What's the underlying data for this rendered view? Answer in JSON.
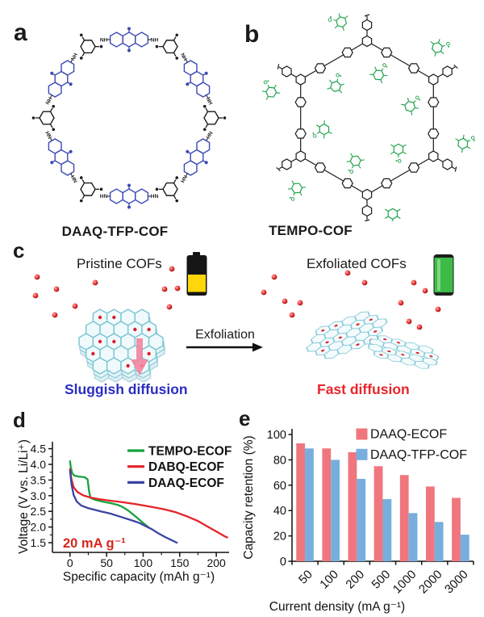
{
  "panels": {
    "a": {
      "label": "a",
      "caption": "DAAQ-TFP-COF",
      "nh_label": "NH",
      "accent_color": "#3b4ab3"
    },
    "b": {
      "label": "b",
      "caption": "TEMPO-COF",
      "radical_label": "O•",
      "accent_color": "#1ea24a"
    },
    "c": {
      "label": "c",
      "pristine_title": "Pristine COFs",
      "exfoliated_title": "Exfoliated COFs",
      "arrow_label": "Exfoliation",
      "sluggish_caption": "Sluggish diffusion",
      "fast_caption": "Fast diffusion",
      "sluggish_color": "#2b2ec1",
      "fast_color": "#e8262d",
      "battery_low_colors": {
        "body": "#161616",
        "charge": "#ffd60a"
      },
      "battery_full_color": "#3dbb46",
      "ion_color": "#d8232a"
    },
    "d": {
      "label": "d"
    },
    "e": {
      "label": "e"
    }
  },
  "chart_data": [
    {
      "panel": "d",
      "type": "line",
      "title": "",
      "xlabel": "Specific capacity (mAh g⁻¹)",
      "ylabel": "Voltage (V vs. Li/Li⁺)",
      "xlim": [
        -25,
        220
      ],
      "ylim": [
        1.3,
        4.7
      ],
      "xticks": [
        0,
        50,
        100,
        150,
        200
      ],
      "yticks": [
        1.5,
        2.0,
        2.5,
        3.0,
        3.5,
        4.0,
        4.5
      ],
      "grid": false,
      "legend_position": "top-right",
      "annotation": {
        "text": "20 mA g⁻¹",
        "color": "#d9251d"
      },
      "series": [
        {
          "name": "TEMPO-ECOF",
          "color": "#17a23c",
          "points": [
            [
              0,
              4.1
            ],
            [
              1,
              3.92
            ],
            [
              3,
              3.72
            ],
            [
              6,
              3.64
            ],
            [
              12,
              3.61
            ],
            [
              20,
              3.59
            ],
            [
              24,
              3.52
            ],
            [
              26,
              3.15
            ],
            [
              28,
              2.93
            ],
            [
              34,
              2.87
            ],
            [
              45,
              2.81
            ],
            [
              56,
              2.76
            ],
            [
              65,
              2.71
            ],
            [
              72,
              2.64
            ],
            [
              80,
              2.52
            ],
            [
              90,
              2.33
            ],
            [
              100,
              2.13
            ],
            [
              107,
              2.0
            ]
          ]
        },
        {
          "name": "DABQ-ECOF",
          "color": "#e42328",
          "points": [
            [
              0,
              3.85
            ],
            [
              2,
              3.52
            ],
            [
              5,
              3.27
            ],
            [
              10,
              3.12
            ],
            [
              18,
              3.01
            ],
            [
              28,
              2.94
            ],
            [
              40,
              2.89
            ],
            [
              55,
              2.84
            ],
            [
              70,
              2.8
            ],
            [
              90,
              2.73
            ],
            [
              110,
              2.65
            ],
            [
              130,
              2.56
            ],
            [
              145,
              2.47
            ],
            [
              160,
              2.34
            ],
            [
              175,
              2.19
            ],
            [
              190,
              1.99
            ],
            [
              203,
              1.82
            ],
            [
              211,
              1.71
            ],
            [
              215,
              1.67
            ]
          ]
        },
        {
          "name": "DAAQ-ECOF",
          "color": "#3b43a5",
          "points": [
            [
              0,
              3.8
            ],
            [
              2,
              3.37
            ],
            [
              5,
              3.02
            ],
            [
              9,
              2.82
            ],
            [
              15,
              2.69
            ],
            [
              25,
              2.6
            ],
            [
              40,
              2.51
            ],
            [
              55,
              2.43
            ],
            [
              70,
              2.32
            ],
            [
              85,
              2.21
            ],
            [
              95,
              2.13
            ],
            [
              105,
              2.01
            ],
            [
              112,
              1.93
            ],
            [
              120,
              1.81
            ],
            [
              130,
              1.68
            ],
            [
              140,
              1.57
            ],
            [
              146,
              1.5
            ]
          ]
        }
      ]
    },
    {
      "panel": "e",
      "type": "bar",
      "title": "",
      "xlabel": "Current density (mA g⁻¹)",
      "ylabel": "Capacity retention (%)",
      "categories": [
        "50",
        "100",
        "200",
        "500",
        "1000",
        "2000",
        "3000"
      ],
      "ylim": [
        0,
        100
      ],
      "yticks": [
        0,
        20,
        40,
        60,
        80,
        100
      ],
      "grid": false,
      "legend_position": "top-right",
      "series": [
        {
          "name": "DAAQ-ECOF",
          "color": "#f0767e",
          "values": [
            93,
            89,
            86,
            75,
            68,
            59,
            50
          ]
        },
        {
          "name": "DAAQ-TFP-COF",
          "color": "#77aede",
          "values": [
            89,
            80,
            65,
            49,
            38,
            31,
            21
          ]
        }
      ]
    }
  ]
}
